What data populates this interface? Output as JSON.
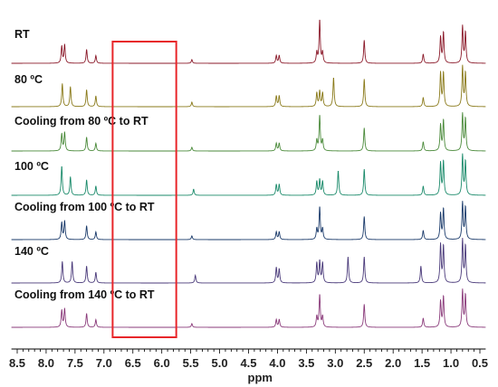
{
  "chart_data": {
    "type": "line",
    "xlabel": "ppm",
    "ylabel": "",
    "xlim": [
      8.6,
      0.4
    ],
    "x_reversed": true,
    "x_ticks": [
      "8.5",
      "8.0",
      "7.5",
      "7.0",
      "6.5",
      "6.0",
      "5.5",
      "5.0",
      "4.5",
      "4.0",
      "3.5",
      "3.0",
      "2.5",
      "2.0",
      "1.5",
      "1.0",
      "0.5"
    ],
    "x_tick_values": [
      8.5,
      8.0,
      7.5,
      7.0,
      6.5,
      6.0,
      5.5,
      5.0,
      4.5,
      4.0,
      3.5,
      3.0,
      2.5,
      2.0,
      1.5,
      1.0,
      0.5
    ],
    "highlight_region": {
      "from_ppm": 6.85,
      "to_ppm": 5.75,
      "color": "#e8262a"
    },
    "series": [
      {
        "name": "RT",
        "color": "#8b1a2a",
        "peaks": [
          [
            7.73,
            0.55
          ],
          [
            7.68,
            0.6
          ],
          [
            7.3,
            0.45
          ],
          [
            7.14,
            0.25
          ],
          [
            5.48,
            0.12
          ],
          [
            4.02,
            0.25
          ],
          [
            3.97,
            0.25
          ],
          [
            3.32,
            0.35
          ],
          [
            3.27,
            1.4
          ],
          [
            3.22,
            0.35
          ],
          [
            2.5,
            0.75
          ],
          [
            1.48,
            0.3
          ],
          [
            1.18,
            0.85
          ],
          [
            1.13,
            1.0
          ],
          [
            0.8,
            1.2
          ],
          [
            0.75,
            1.0
          ]
        ]
      },
      {
        "name": "80 ºC",
        "color": "#8a7a1a",
        "peaks": [
          [
            7.72,
            0.75
          ],
          [
            7.58,
            0.65
          ],
          [
            7.3,
            0.55
          ],
          [
            7.14,
            0.35
          ],
          [
            5.48,
            0.15
          ],
          [
            4.02,
            0.35
          ],
          [
            3.97,
            0.35
          ],
          [
            3.32,
            0.45
          ],
          [
            3.27,
            0.5
          ],
          [
            3.22,
            0.45
          ],
          [
            3.03,
            0.95
          ],
          [
            2.5,
            0.9
          ],
          [
            1.48,
            0.3
          ],
          [
            1.18,
            1.1
          ],
          [
            1.13,
            1.1
          ],
          [
            0.8,
            1.3
          ],
          [
            0.75,
            1.1
          ]
        ]
      },
      {
        "name": "Cooling from 80 ºC to RT",
        "color": "#4a8a3a",
        "peaks": [
          [
            7.73,
            0.55
          ],
          [
            7.68,
            0.6
          ],
          [
            7.3,
            0.45
          ],
          [
            7.14,
            0.25
          ],
          [
            5.48,
            0.12
          ],
          [
            4.02,
            0.25
          ],
          [
            3.97,
            0.25
          ],
          [
            3.32,
            0.35
          ],
          [
            3.27,
            1.15
          ],
          [
            3.22,
            0.35
          ],
          [
            2.5,
            0.75
          ],
          [
            1.48,
            0.3
          ],
          [
            1.18,
            0.85
          ],
          [
            1.13,
            1.0
          ],
          [
            0.8,
            1.2
          ],
          [
            0.75,
            1.05
          ]
        ]
      },
      {
        "name": "100 ºC",
        "color": "#1a8a6a",
        "peaks": [
          [
            7.73,
            0.95
          ],
          [
            7.58,
            0.6
          ],
          [
            7.3,
            0.5
          ],
          [
            7.14,
            0.3
          ],
          [
            5.45,
            0.2
          ],
          [
            4.02,
            0.35
          ],
          [
            3.97,
            0.35
          ],
          [
            3.32,
            0.45
          ],
          [
            3.27,
            0.5
          ],
          [
            3.22,
            0.45
          ],
          [
            2.95,
            0.8
          ],
          [
            2.5,
            0.85
          ],
          [
            1.48,
            0.3
          ],
          [
            1.18,
            1.05
          ],
          [
            1.13,
            1.1
          ],
          [
            0.8,
            1.3
          ],
          [
            0.75,
            1.1
          ]
        ]
      },
      {
        "name": "Cooling from 100 ºC to RT",
        "color": "#1a3a6a",
        "peaks": [
          [
            7.73,
            0.55
          ],
          [
            7.68,
            0.6
          ],
          [
            7.3,
            0.45
          ],
          [
            7.14,
            0.25
          ],
          [
            5.48,
            0.12
          ],
          [
            4.02,
            0.25
          ],
          [
            3.97,
            0.25
          ],
          [
            3.32,
            0.35
          ],
          [
            3.27,
            1.05
          ],
          [
            3.22,
            0.35
          ],
          [
            2.5,
            0.75
          ],
          [
            1.48,
            0.3
          ],
          [
            1.18,
            0.85
          ],
          [
            1.13,
            1.0
          ],
          [
            0.8,
            1.2
          ],
          [
            0.75,
            1.05
          ]
        ]
      },
      {
        "name": "140 ºC",
        "color": "#4a3a7a",
        "peaks": [
          [
            7.72,
            0.7
          ],
          [
            7.55,
            0.7
          ],
          [
            7.3,
            0.55
          ],
          [
            7.14,
            0.35
          ],
          [
            5.42,
            0.25
          ],
          [
            4.02,
            0.5
          ],
          [
            3.97,
            0.45
          ],
          [
            3.32,
            0.65
          ],
          [
            3.27,
            0.7
          ],
          [
            3.22,
            0.65
          ],
          [
            2.78,
            0.85
          ],
          [
            2.5,
            0.85
          ],
          [
            1.52,
            0.55
          ],
          [
            1.18,
            1.25
          ],
          [
            1.13,
            1.2
          ],
          [
            0.8,
            1.4
          ],
          [
            0.75,
            1.2
          ]
        ]
      },
      {
        "name": "Cooling from 140 ºC to RT",
        "color": "#8a3a7a",
        "peaks": [
          [
            7.73,
            0.55
          ],
          [
            7.68,
            0.6
          ],
          [
            7.3,
            0.45
          ],
          [
            7.14,
            0.25
          ],
          [
            5.48,
            0.12
          ],
          [
            4.02,
            0.25
          ],
          [
            3.97,
            0.25
          ],
          [
            3.32,
            0.35
          ],
          [
            3.27,
            1.05
          ],
          [
            3.22,
            0.35
          ],
          [
            2.5,
            0.75
          ],
          [
            1.48,
            0.3
          ],
          [
            1.18,
            0.85
          ],
          [
            1.13,
            1.0
          ],
          [
            0.8,
            1.2
          ],
          [
            0.75,
            1.05
          ]
        ]
      }
    ]
  }
}
